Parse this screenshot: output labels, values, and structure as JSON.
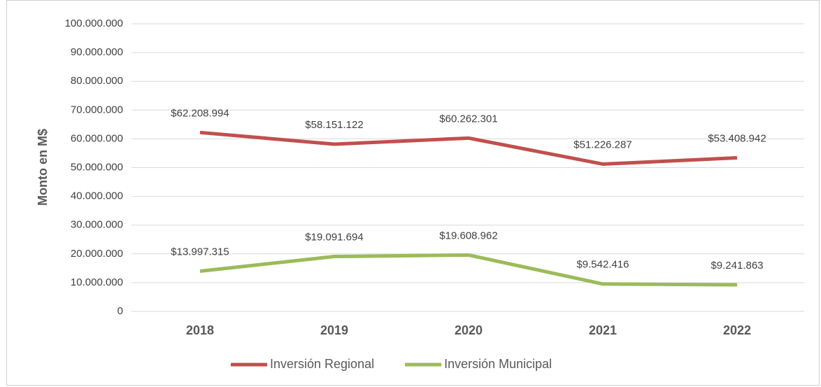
{
  "chart_data": {
    "type": "line",
    "y_label": "Monto en M$",
    "categories": [
      "2018",
      "2019",
      "2020",
      "2021",
      "2022"
    ],
    "series": [
      {
        "name": "Inversión Regional",
        "color": "#c0504d",
        "values": [
          62208994,
          58151122,
          60262301,
          51226287,
          53408942
        ],
        "value_labels": [
          "$62.208.994",
          "$58.151.122",
          "$60.262.301",
          "$51.226.287",
          "$53.408.942"
        ]
      },
      {
        "name": "Inversión Municipal",
        "color": "#9bbb59",
        "values": [
          13997315,
          19091694,
          19608962,
          9542416,
          9241863
        ],
        "value_labels": [
          "$13.997.315",
          "$19.091.694",
          "$19.608.962",
          "$9.542.416",
          "$9.241.863"
        ]
      }
    ],
    "ylim": [
      0,
      100000000
    ],
    "yticks": [
      0,
      {
        "value": 10000000,
        "label": "10.000.000"
      },
      {
        "value": 20000000,
        "label": "20.000.000"
      },
      {
        "value": 30000000,
        "label": "30.000.000"
      },
      {
        "value": 40000000,
        "label": "40.000.000"
      },
      {
        "value": 50000000,
        "label": "50.000.000"
      },
      {
        "value": 60000000,
        "label": "60.000.000"
      },
      {
        "value": 70000000,
        "label": "70.000.000"
      },
      {
        "value": 80000000,
        "label": "80.000.000"
      },
      {
        "value": 90000000,
        "label": "90.000.000"
      },
      {
        "value": 100000000,
        "label": "100.000.000"
      }
    ],
    "grid": true,
    "legend": "bottom"
  }
}
